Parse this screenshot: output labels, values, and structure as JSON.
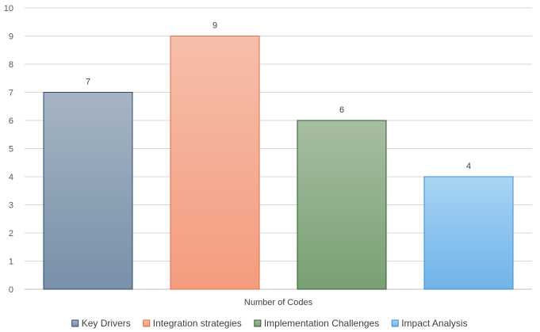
{
  "chart_data": {
    "type": "bar",
    "title": "",
    "xlabel": "Number of Codes",
    "ylabel": "",
    "ylim": [
      0,
      10
    ],
    "yticks": [
      0,
      1,
      2,
      3,
      4,
      5,
      6,
      7,
      8,
      9,
      10
    ],
    "grid": true,
    "legend_position": "bottom",
    "categories": [
      "Key Drivers",
      "Integration strategies",
      "Implementation Challenges",
      "Impact Analysis"
    ],
    "values": [
      7,
      9,
      6,
      4
    ],
    "colors": [
      {
        "top": "#a6b5c3",
        "bottom": "#7890a9",
        "stroke": "#2f4a6a"
      },
      {
        "top": "#f6bfaa",
        "bottom": "#f49c7f",
        "stroke": "#e36a43"
      },
      {
        "top": "#a7bda2",
        "bottom": "#79a074",
        "stroke": "#2f5e2c"
      },
      {
        "top": "#a9d4f4",
        "bottom": "#6fb4ea",
        "stroke": "#3b8ed1"
      }
    ]
  }
}
